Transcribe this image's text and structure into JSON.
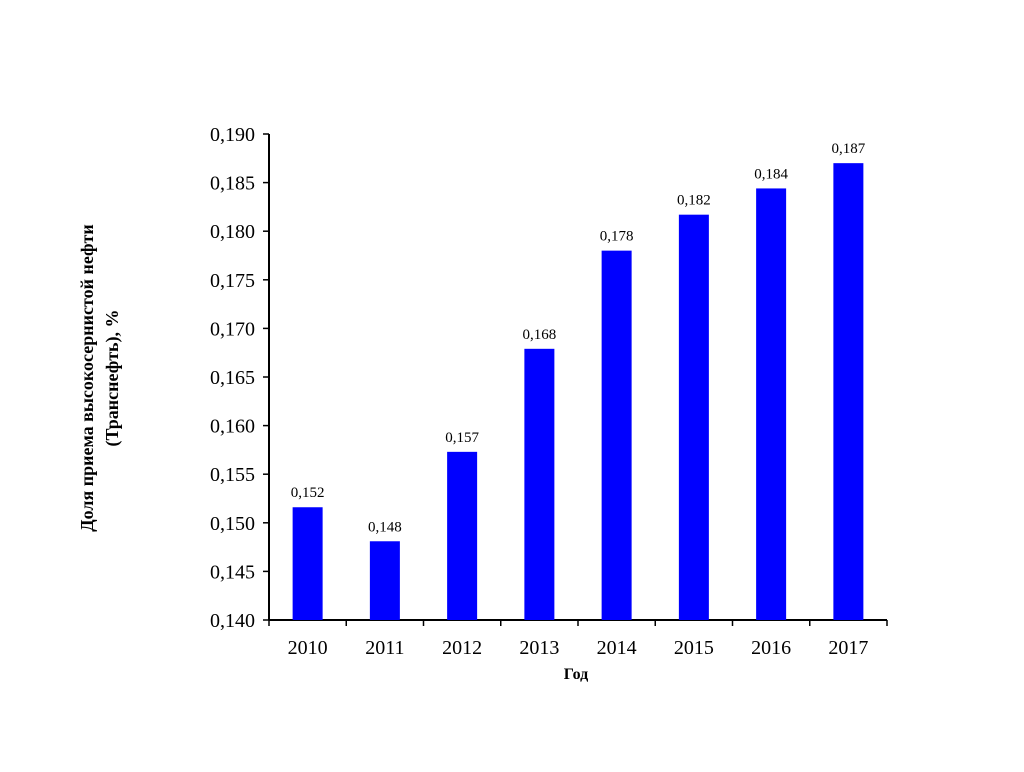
{
  "chart_data": {
    "type": "bar",
    "title": "",
    "xlabel": "Год",
    "ylabel_line1": "Доля приема высокосернистой нефти",
    "ylabel_line2": "(Транснефть), %",
    "categories": [
      "2010",
      "2011",
      "2012",
      "2013",
      "2014",
      "2015",
      "2016",
      "2017"
    ],
    "values": [
      0.1516,
      0.1481,
      0.1573,
      0.1679,
      0.178,
      0.1817,
      0.1844,
      0.187
    ],
    "value_labels": [
      "0,152",
      "0,148",
      "0,157",
      "0,168",
      "0,178",
      "0,182",
      "0,184",
      "0,187"
    ],
    "ylim": [
      0.14,
      0.19
    ],
    "yticks": [
      0.14,
      0.145,
      0.15,
      0.155,
      0.16,
      0.165,
      0.17,
      0.175,
      0.18,
      0.185,
      0.19
    ],
    "ytick_labels": [
      "0,140",
      "0,145",
      "0,150",
      "0,155",
      "0,160",
      "0,165",
      "0,170",
      "0,175",
      "0,180",
      "0,185",
      "0,190"
    ],
    "bar_color": "#0000FF",
    "grid": false,
    "legend": "none"
  }
}
